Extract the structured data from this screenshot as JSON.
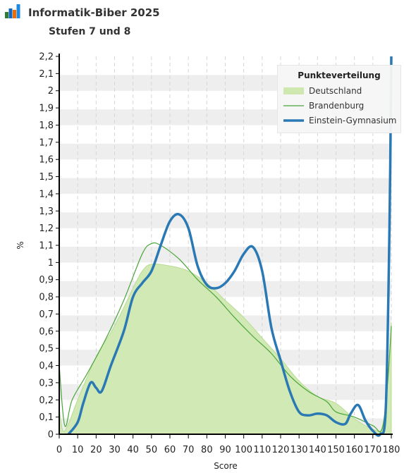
{
  "header": {
    "title": "Informatik-Biber 2025",
    "subtitle": "Stufen 7 und 8"
  },
  "colors": {
    "deutschland_fill": "#cfe8b0",
    "deutschland_line": "#b8dc92",
    "brandenburg": "#4aa53a",
    "einstein": "#2a79b5",
    "band": "#eeeeee",
    "logo_colors": [
      "#2e7d32",
      "#1565c0",
      "#ef6c00",
      "#1e88e5"
    ]
  },
  "chart_data": {
    "type": "area",
    "title": "",
    "xlabel": "Score",
    "ylabel": "%",
    "xlim": [
      0,
      180
    ],
    "ylim": [
      0,
      2.2
    ],
    "xticks": [
      "0",
      "10",
      "20",
      "30",
      "40",
      "50",
      "60",
      "70",
      "80",
      "90",
      "100",
      "110",
      "120",
      "130",
      "140",
      "150",
      "160",
      "170",
      "180"
    ],
    "yticks": [
      "0",
      "0,1",
      "0,2",
      "0,3",
      "0,4",
      "0,5",
      "0,6",
      "0,7",
      "0,8",
      "0,9",
      "1",
      "1,1",
      "1,2",
      "1,3",
      "1,4",
      "1,5",
      "1,6",
      "1,7",
      "1,8",
      "1,9",
      "2",
      "2,1",
      "2,2"
    ],
    "grid": "alternating horizontal bands, dashed vertical lines",
    "legend": {
      "title": "Punkteverteilung",
      "placement": "top-right",
      "items": [
        "Deutschland",
        "Brandenburg",
        "Einstein-Gymnasium"
      ]
    },
    "series": [
      {
        "name": "Deutschland",
        "style": "area",
        "points": [
          [
            0,
            0.15
          ],
          [
            2,
            0.02
          ],
          [
            5,
            0.06
          ],
          [
            10,
            0.2
          ],
          [
            20,
            0.45
          ],
          [
            30,
            0.63
          ],
          [
            40,
            0.85
          ],
          [
            45,
            0.95
          ],
          [
            50,
            0.99
          ],
          [
            60,
            0.98
          ],
          [
            70,
            0.95
          ],
          [
            80,
            0.88
          ],
          [
            90,
            0.78
          ],
          [
            100,
            0.68
          ],
          [
            110,
            0.56
          ],
          [
            120,
            0.44
          ],
          [
            130,
            0.31
          ],
          [
            140,
            0.22
          ],
          [
            150,
            0.18
          ],
          [
            160,
            0.09
          ],
          [
            170,
            0.03
          ],
          [
            175,
            0.04
          ],
          [
            178,
            0.3
          ],
          [
            180,
            0.65
          ]
        ]
      },
      {
        "name": "Brandenburg",
        "style": "line",
        "points": [
          [
            0,
            0.4
          ],
          [
            3,
            0.05
          ],
          [
            7,
            0.2
          ],
          [
            15,
            0.35
          ],
          [
            25,
            0.55
          ],
          [
            35,
            0.78
          ],
          [
            45,
            1.05
          ],
          [
            50,
            1.11
          ],
          [
            55,
            1.1
          ],
          [
            65,
            1.02
          ],
          [
            75,
            0.9
          ],
          [
            85,
            0.8
          ],
          [
            95,
            0.68
          ],
          [
            105,
            0.57
          ],
          [
            115,
            0.47
          ],
          [
            125,
            0.34
          ],
          [
            135,
            0.25
          ],
          [
            145,
            0.19
          ],
          [
            150,
            0.13
          ],
          [
            160,
            0.1
          ],
          [
            170,
            0.05
          ],
          [
            175,
            0.03
          ],
          [
            178,
            0.3
          ],
          [
            180,
            0.63
          ]
        ]
      },
      {
        "name": "Einstein-Gymnasium",
        "style": "line",
        "points": [
          [
            5,
            0.0
          ],
          [
            10,
            0.07
          ],
          [
            13,
            0.18
          ],
          [
            17,
            0.3
          ],
          [
            20,
            0.27
          ],
          [
            23,
            0.25
          ],
          [
            28,
            0.4
          ],
          [
            35,
            0.6
          ],
          [
            40,
            0.8
          ],
          [
            45,
            0.88
          ],
          [
            50,
            0.95
          ],
          [
            55,
            1.1
          ],
          [
            60,
            1.24
          ],
          [
            65,
            1.28
          ],
          [
            70,
            1.2
          ],
          [
            75,
            0.98
          ],
          [
            80,
            0.87
          ],
          [
            85,
            0.85
          ],
          [
            90,
            0.88
          ],
          [
            95,
            0.95
          ],
          [
            100,
            1.05
          ],
          [
            105,
            1.09
          ],
          [
            110,
            0.95
          ],
          [
            115,
            0.62
          ],
          [
            120,
            0.43
          ],
          [
            125,
            0.25
          ],
          [
            130,
            0.13
          ],
          [
            135,
            0.11
          ],
          [
            140,
            0.12
          ],
          [
            145,
            0.11
          ],
          [
            150,
            0.07
          ],
          [
            155,
            0.06
          ],
          [
            158,
            0.12
          ],
          [
            162,
            0.17
          ],
          [
            166,
            0.08
          ],
          [
            170,
            0.02
          ],
          [
            174,
            0.0
          ],
          [
            177,
            0.15
          ],
          [
            179,
            1.2
          ],
          [
            180,
            2.2
          ]
        ]
      }
    ]
  }
}
